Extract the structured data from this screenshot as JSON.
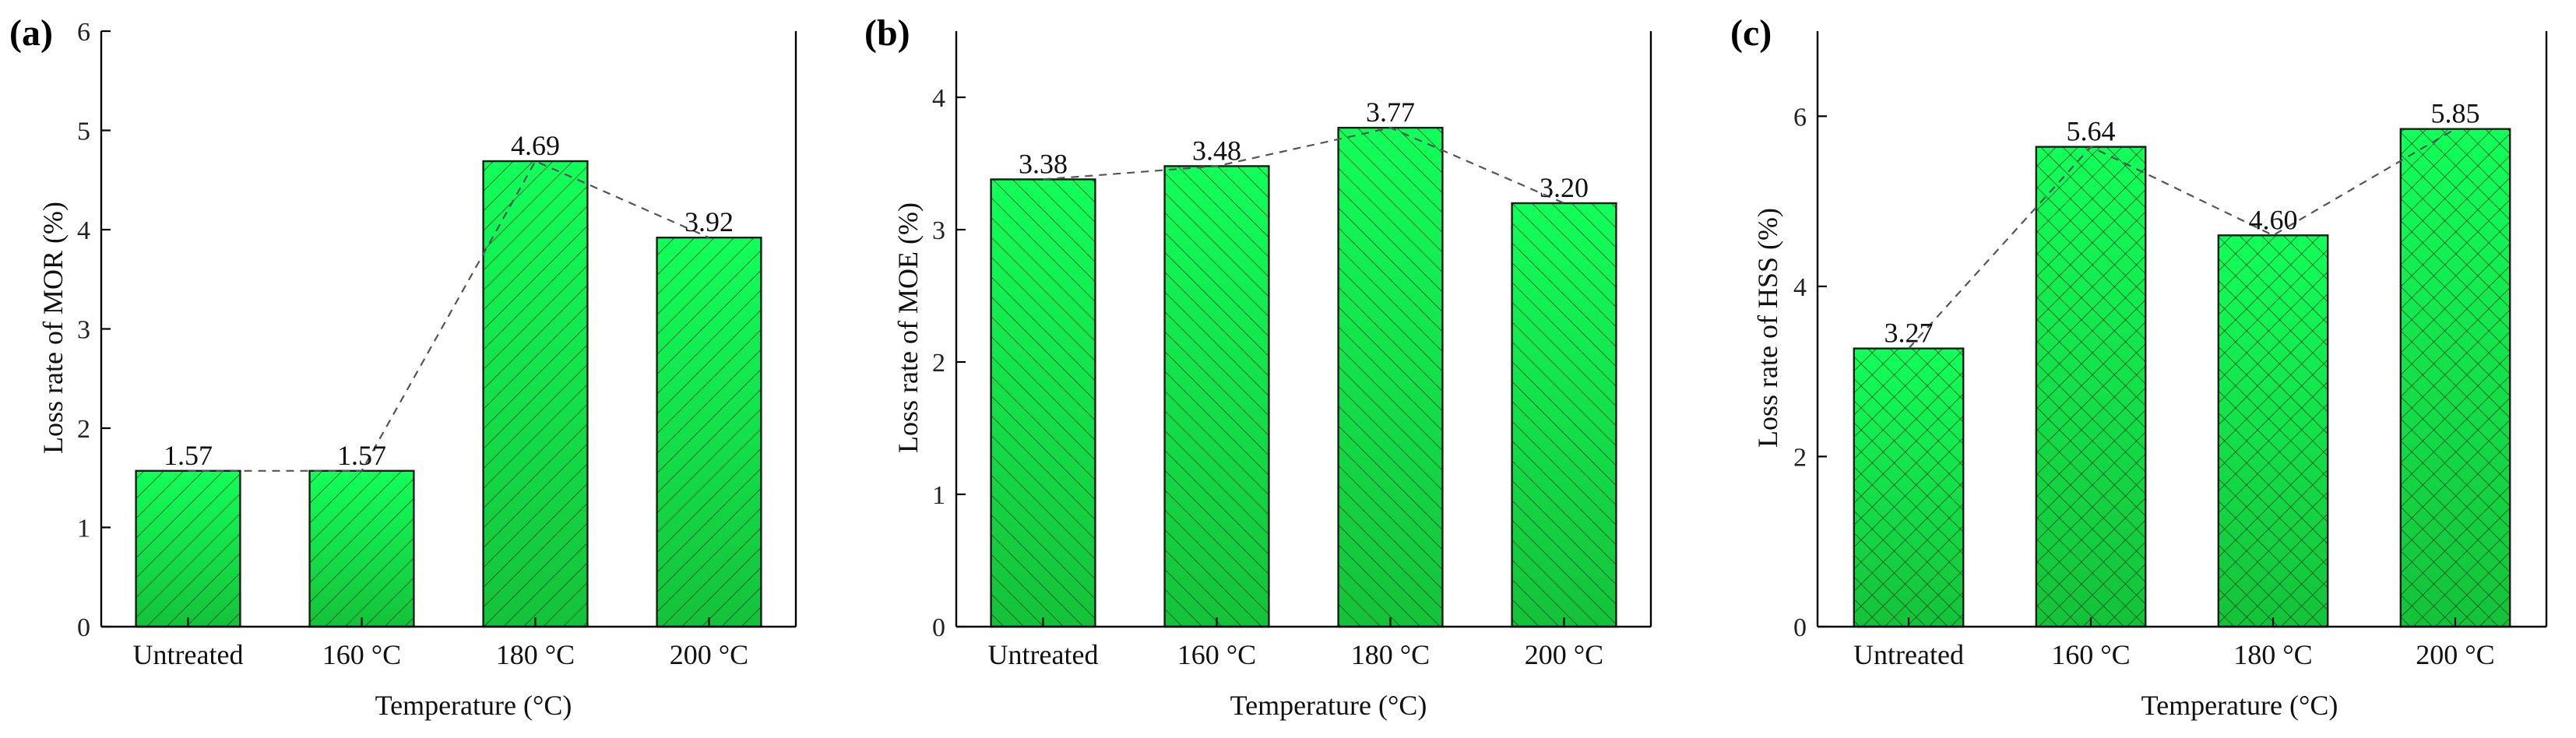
{
  "colors": {
    "bar_top": "#12ff5a",
    "bar_bottom": "#14c23a",
    "hatch": "#0a4a17",
    "axis": "#000000",
    "trend": "#555555"
  },
  "chart_data": [
    {
      "panel": "(a)",
      "type": "bar",
      "pattern": "diagonal",
      "categories": [
        "Untreated",
        "160 °C",
        "180 °C",
        "200 °C"
      ],
      "values": [
        1.57,
        1.57,
        4.69,
        3.92
      ],
      "value_labels": [
        "1.57",
        "1.57",
        "4.69",
        "3.92"
      ],
      "xlabel": "Temperature (°C)",
      "ylabel": "Loss rate of MOR (%)",
      "ylim": [
        0,
        6
      ],
      "yticks": [
        0,
        1,
        2,
        3,
        4,
        5,
        6
      ],
      "trend_line": "dashed"
    },
    {
      "panel": "(b)",
      "type": "bar",
      "pattern": "diagonal-reverse",
      "categories": [
        "Untreated",
        "160 °C",
        "180 °C",
        "200 °C"
      ],
      "values": [
        3.38,
        3.48,
        3.77,
        3.2
      ],
      "value_labels": [
        "3.38",
        "3.48",
        "3.77",
        "3.20"
      ],
      "xlabel": "Temperature (°C)",
      "ylabel": "Loss rate of MOE (%)",
      "ylim": [
        0,
        4.5
      ],
      "yticks": [
        0,
        1,
        2,
        3,
        4
      ],
      "trend_line": "dashed"
    },
    {
      "panel": "(c)",
      "type": "bar",
      "pattern": "crosshatch",
      "categories": [
        "Untreated",
        "160 °C",
        "180 °C",
        "200 °C"
      ],
      "values": [
        3.27,
        5.64,
        4.6,
        5.85
      ],
      "value_labels": [
        "3.27",
        "5.64",
        "4.60",
        "5.85"
      ],
      "xlabel": "Temperature (°C)",
      "ylabel": "Loss rate of HSS (%)",
      "ylim": [
        0,
        7
      ],
      "yticks": [
        0,
        2,
        4,
        6
      ],
      "trend_line": "dashed"
    }
  ]
}
